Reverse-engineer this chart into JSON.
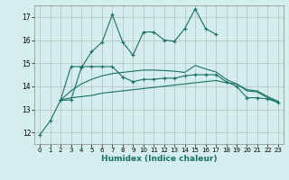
{
  "xlabel": "Humidex (Indice chaleur)",
  "background_color": "#d4eeee",
  "line_color": "#1a7060",
  "x_values": [
    0,
    1,
    2,
    3,
    4,
    5,
    6,
    7,
    8,
    9,
    10,
    11,
    12,
    13,
    14,
    15,
    16,
    17,
    18,
    19,
    20,
    21,
    22,
    23
  ],
  "line1": [
    11.9,
    12.5,
    13.4,
    13.4,
    14.8,
    15.5,
    15.9,
    17.1,
    15.9,
    15.35,
    16.35,
    16.35,
    16.0,
    15.95,
    16.5,
    17.35,
    16.5,
    16.25,
    null,
    null,
    null,
    null,
    null,
    null
  ],
  "line2": [
    null,
    null,
    13.4,
    14.85,
    14.85,
    14.85,
    14.85,
    14.85,
    14.4,
    14.2,
    14.3,
    14.3,
    14.35,
    14.35,
    14.45,
    14.5,
    14.5,
    14.5,
    14.2,
    14.0,
    13.5,
    13.5,
    13.45,
    13.3
  ],
  "line3": [
    null,
    null,
    13.4,
    13.5,
    13.55,
    13.6,
    13.7,
    13.75,
    13.8,
    13.85,
    13.9,
    13.95,
    14.0,
    14.05,
    14.1,
    14.15,
    14.2,
    14.25,
    14.15,
    14.1,
    13.8,
    13.75,
    13.5,
    13.3
  ],
  "line4": [
    null,
    null,
    13.4,
    13.8,
    14.1,
    14.3,
    14.45,
    14.55,
    14.6,
    14.65,
    14.7,
    14.7,
    14.68,
    14.65,
    14.6,
    14.9,
    14.75,
    14.62,
    14.3,
    14.1,
    13.85,
    13.8,
    13.55,
    13.35
  ],
  "ylim": [
    11.5,
    17.5
  ],
  "xlim": [
    -0.5,
    23.5
  ],
  "yticks": [
    12,
    13,
    14,
    15,
    16,
    17
  ]
}
